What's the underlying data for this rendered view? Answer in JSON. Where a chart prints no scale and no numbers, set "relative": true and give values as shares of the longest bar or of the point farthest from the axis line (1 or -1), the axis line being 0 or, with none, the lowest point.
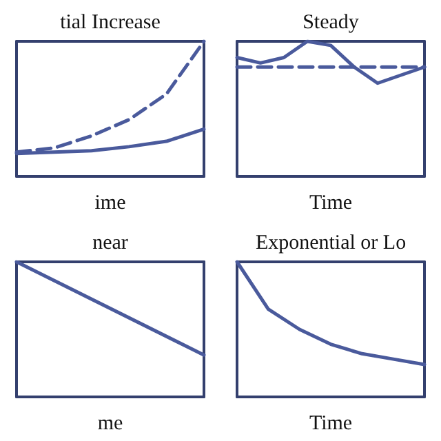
{
  "chart_data": [
    {
      "type": "line",
      "title": "tial Increase",
      "xlabel": "ime",
      "relative": true,
      "categories": [
        null,
        null,
        null,
        null,
        null,
        null
      ],
      "series": [
        {
          "color": "#4a5a9c",
          "line_style": "dashed",
          "values": [
            0.18,
            0.21,
            0.3,
            0.42,
            0.61,
            1.0
          ]
        },
        {
          "color": "#4a5a9c",
          "line_style": "solid",
          "values": [
            0.17,
            0.18,
            0.19,
            0.22,
            0.26,
            0.35
          ]
        }
      ],
      "marker": "none",
      "grid": false
    },
    {
      "type": "line",
      "title": "Steady",
      "xlabel": "Time",
      "relative": true,
      "categories": [
        null,
        null,
        null,
        null,
        null,
        null,
        null,
        null,
        null
      ],
      "series": [
        {
          "color": "#4a5a9c",
          "line_style": "solid",
          "values": [
            0.88,
            0.84,
            0.88,
            1.0,
            0.97,
            0.81,
            0.69,
            0.75,
            0.81
          ]
        },
        {
          "color": "#4a5a9c",
          "line_style": "dashed",
          "values": [
            0.81,
            0.81,
            0.81,
            0.81,
            0.81,
            0.81,
            0.81,
            0.81,
            0.81
          ]
        }
      ],
      "marker": "none",
      "grid": false
    },
    {
      "type": "line",
      "title": "near",
      "xlabel": "me",
      "relative": true,
      "categories": [
        null,
        null
      ],
      "series": [
        {
          "color": "#4a5a9c",
          "line_style": "solid",
          "values": [
            1.0,
            0.31
          ]
        }
      ],
      "marker": "none",
      "grid": false
    },
    {
      "type": "line",
      "title": "Exponential or Lo",
      "xlabel": "Time",
      "relative": true,
      "categories": [
        null,
        null,
        null,
        null,
        null,
        null,
        null
      ],
      "series": [
        {
          "color": "#4a5a9c",
          "line_style": "solid",
          "values": [
            1.0,
            0.65,
            0.5,
            0.39,
            0.32,
            0.28,
            0.24
          ]
        }
      ],
      "marker": "none",
      "grid": false
    }
  ]
}
